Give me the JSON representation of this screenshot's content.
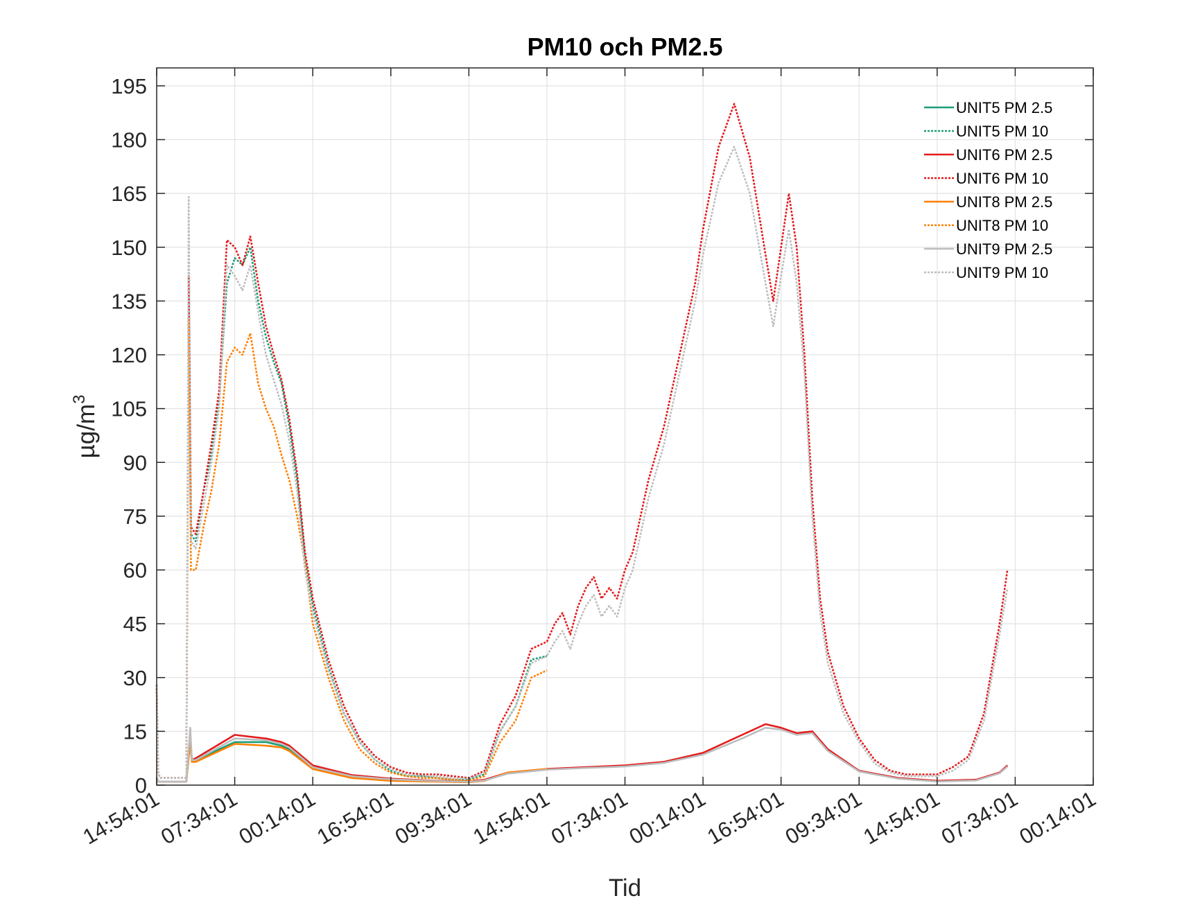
{
  "chart_data": {
    "type": "line",
    "title": "PM10 och PM2.5",
    "xlabel": "Tid",
    "ylabel": "µg/m",
    "ylabel_superscript": "3",
    "ylim": [
      0,
      200
    ],
    "yticks": [
      0,
      15,
      30,
      45,
      60,
      75,
      90,
      105,
      120,
      135,
      150,
      165,
      180,
      195
    ],
    "xlim": [
      0,
      12
    ],
    "xticks": [
      0,
      1,
      2,
      3,
      4,
      5,
      6,
      7,
      8,
      9,
      10,
      11,
      12
    ],
    "xtick_labels": [
      "14:54:01",
      "07:34:01",
      "00:14:01",
      "16:54:01",
      "09:34:01",
      "14:54:01",
      "07:34:01",
      "00:14:01",
      "16:54:01",
      "09:34:01",
      "14:54:01",
      "07:34:01",
      "00:14:01"
    ],
    "grid": true,
    "legend_position": "top-right",
    "series": [
      {
        "name": "UNIT5 PM 2.5",
        "color": "#1b9e77",
        "style": "solid",
        "x": [
          0,
          0.02,
          0.05,
          0.38,
          0.43,
          0.45,
          0.5,
          1.0,
          1.4,
          1.6,
          1.7,
          2.0,
          2.5,
          3.0,
          3.5,
          4.0,
          4.2
        ],
        "y": [
          2.0,
          1.0,
          1.0,
          1.0,
          13,
          7,
          7,
          12,
          12,
          11,
          10,
          5,
          2.5,
          1.5,
          1.2,
          1.0,
          1.2
        ]
      },
      {
        "name": "UNIT5 PM 10",
        "color": "#1b9e77",
        "style": "dotted",
        "x": [
          0,
          0.02,
          0.05,
          0.38,
          0.41,
          0.44,
          0.5,
          0.6,
          0.7,
          0.8,
          0.9,
          1.0,
          1.1,
          1.2,
          1.3,
          1.4,
          1.5,
          1.6,
          1.7,
          1.8,
          1.9,
          2.0,
          2.2,
          2.4,
          2.6,
          2.8,
          3.0,
          3.2,
          3.4,
          3.6,
          3.8,
          4.0,
          4.2,
          4.4,
          4.6,
          4.8,
          5.0
        ],
        "y": [
          28,
          3,
          2,
          2,
          140,
          70,
          68,
          82,
          92,
          108,
          140,
          147,
          145,
          150,
          135,
          125,
          118,
          112,
          100,
          85,
          63,
          50,
          33,
          20,
          12,
          7,
          4,
          2.5,
          2.5,
          2,
          1.5,
          1.5,
          3,
          15,
          22,
          35,
          36
        ]
      },
      {
        "name": "UNIT6 PM 2.5",
        "color": "#e41a1c",
        "style": "solid",
        "x": [
          0,
          0.02,
          0.05,
          0.38,
          0.43,
          0.45,
          0.5,
          1.0,
          1.4,
          1.6,
          1.7,
          2.0,
          2.5,
          3.0,
          3.5,
          4.0,
          4.2,
          4.5,
          5.0,
          5.5,
          6.0,
          6.5,
          7.0,
          7.5,
          7.8,
          8.0,
          8.2,
          8.4,
          8.6,
          9.0,
          9.5,
          10.0,
          10.5,
          10.8,
          10.9
        ],
        "y": [
          2.0,
          1.0,
          1.0,
          1.0,
          14,
          7,
          7.5,
          14,
          13,
          12,
          11,
          5.5,
          2.8,
          1.8,
          1.3,
          1.0,
          1.5,
          3.5,
          4.5,
          5.0,
          5.5,
          6.5,
          9,
          14,
          17,
          16,
          14.5,
          15,
          10,
          4,
          2,
          1.2,
          1.5,
          3.5,
          5.5
        ]
      },
      {
        "name": "UNIT6 PM 10",
        "color": "#e41a1c",
        "style": "dotted",
        "x": [
          0,
          0.02,
          0.05,
          0.38,
          0.41,
          0.44,
          0.5,
          0.6,
          0.7,
          0.8,
          0.9,
          1.0,
          1.1,
          1.2,
          1.3,
          1.4,
          1.5,
          1.6,
          1.7,
          1.8,
          1.9,
          2.0,
          2.2,
          2.4,
          2.6,
          2.8,
          3.0,
          3.2,
          3.4,
          3.6,
          3.8,
          4.0,
          4.2,
          4.4,
          4.6,
          4.8,
          5.0,
          5.1,
          5.2,
          5.3,
          5.4,
          5.5,
          5.6,
          5.7,
          5.8,
          5.9,
          6.0,
          6.1,
          6.2,
          6.3,
          6.5,
          6.7,
          6.9,
          7.0,
          7.2,
          7.4,
          7.6,
          7.8,
          7.9,
          8.0,
          8.1,
          8.2,
          8.3,
          8.4,
          8.5,
          8.6,
          8.8,
          9.0,
          9.2,
          9.4,
          9.6,
          9.8,
          10.0,
          10.2,
          10.4,
          10.6,
          10.8,
          10.9
        ],
        "y": [
          28,
          3,
          2,
          2,
          142,
          72,
          70,
          82,
          95,
          110,
          152,
          150,
          145,
          153,
          140,
          128,
          120,
          113,
          102,
          87,
          65,
          52,
          35,
          22,
          13,
          8,
          5,
          3.5,
          3,
          3,
          2.5,
          2,
          4,
          17,
          25,
          38,
          40,
          45,
          48,
          42,
          50,
          55,
          58,
          52,
          55,
          52,
          60,
          65,
          75,
          85,
          100,
          120,
          140,
          155,
          178,
          190,
          175,
          148,
          135,
          150,
          165,
          150,
          120,
          80,
          52,
          37,
          22,
          13,
          7,
          4,
          3,
          3,
          3,
          5,
          8,
          20,
          45,
          60
        ]
      },
      {
        "name": "UNIT8 PM 2.5",
        "color": "#ff7f00",
        "style": "solid",
        "x": [
          0,
          0.02,
          0.05,
          0.38,
          0.43,
          0.45,
          0.5,
          1.0,
          1.4,
          1.6,
          1.7,
          2.0,
          2.5,
          3.0,
          3.5,
          4.0,
          4.2,
          4.5,
          5.0
        ],
        "y": [
          2.0,
          1.0,
          1.0,
          1.0,
          12,
          6.5,
          6.5,
          11.5,
          11,
          10.5,
          9.5,
          4.5,
          2.0,
          1.2,
          1.0,
          0.8,
          1.2,
          3.5,
          4.5
        ]
      },
      {
        "name": "UNIT8 PM 10",
        "color": "#ff7f00",
        "style": "dotted",
        "x": [
          0,
          0.02,
          0.05,
          0.38,
          0.41,
          0.44,
          0.5,
          0.6,
          0.7,
          0.8,
          0.9,
          1.0,
          1.1,
          1.2,
          1.3,
          1.4,
          1.5,
          1.6,
          1.7,
          1.8,
          1.9,
          2.0,
          2.2,
          2.4,
          2.6,
          2.8,
          3.0,
          3.2,
          3.4,
          3.6,
          3.8,
          4.0,
          4.2,
          4.4,
          4.6,
          4.8,
          5.0
        ],
        "y": [
          28,
          3,
          2,
          2,
          130,
          60,
          60,
          72,
          82,
          95,
          118,
          122,
          120,
          126,
          112,
          105,
          100,
          92,
          85,
          75,
          62,
          45,
          30,
          18,
          10,
          6,
          3.5,
          2.5,
          2,
          2,
          1.5,
          1.2,
          2.5,
          12,
          18,
          30,
          32
        ]
      },
      {
        "name": "UNIT9 PM 2.5",
        "color": "#bdbdbd",
        "style": "solid",
        "x": [
          0,
          0.02,
          0.05,
          0.38,
          0.43,
          0.45,
          0.5,
          1.0,
          1.4,
          1.6,
          1.7,
          2.0,
          2.5,
          3.0,
          3.5,
          4.0,
          4.2,
          4.5,
          5.0,
          5.5,
          6.0,
          6.5,
          7.0,
          7.5,
          7.8,
          8.0,
          8.2,
          8.4,
          8.6,
          9.0,
          9.5,
          10.0,
          10.5,
          10.8,
          10.9
        ],
        "y": [
          2.0,
          1.0,
          1.0,
          1.0,
          16,
          7,
          7,
          13,
          12.5,
          11.5,
          10.5,
          5,
          2.5,
          1.6,
          1.2,
          0.9,
          1.3,
          3.2,
          4.3,
          4.8,
          5.2,
          6.2,
          8.5,
          13,
          16,
          15.5,
          14,
          14.5,
          9.5,
          3.8,
          1.8,
          1.0,
          1.3,
          3.3,
          5.2
        ]
      },
      {
        "name": "UNIT9 PM 10",
        "color": "#bdbdbd",
        "style": "dotted",
        "x": [
          0,
          0.02,
          0.05,
          0.38,
          0.41,
          0.44,
          0.5,
          0.6,
          0.7,
          0.8,
          0.9,
          1.0,
          1.1,
          1.2,
          1.3,
          1.4,
          1.5,
          1.6,
          1.7,
          1.8,
          1.9,
          2.0,
          2.2,
          2.4,
          2.6,
          2.8,
          3.0,
          3.2,
          3.4,
          3.6,
          3.8,
          4.0,
          4.2,
          4.4,
          4.6,
          4.8,
          5.0,
          5.1,
          5.2,
          5.3,
          5.4,
          5.5,
          5.6,
          5.7,
          5.8,
          5.9,
          6.0,
          6.1,
          6.2,
          6.3,
          6.5,
          6.7,
          6.9,
          7.0,
          7.2,
          7.4,
          7.6,
          7.8,
          7.9,
          8.0,
          8.1,
          8.2,
          8.3,
          8.4,
          8.5,
          8.6,
          8.8,
          9.0,
          9.2,
          9.4,
          9.6,
          9.8,
          10.0,
          10.2,
          10.4,
          10.6,
          10.8,
          10.9
        ],
        "y": [
          28,
          3,
          2,
          2,
          164,
          68,
          66,
          78,
          90,
          105,
          145,
          142,
          138,
          145,
          132,
          120,
          113,
          106,
          96,
          82,
          60,
          48,
          32,
          20,
          12,
          7,
          4.5,
          3,
          2.5,
          2.5,
          2,
          1.8,
          3.5,
          15,
          22,
          34,
          36,
          40,
          43,
          38,
          45,
          50,
          53,
          47,
          50,
          47,
          55,
          60,
          70,
          80,
          95,
          115,
          135,
          148,
          168,
          178,
          165,
          140,
          128,
          142,
          155,
          140,
          115,
          75,
          48,
          34,
          20,
          12,
          6,
          3.5,
          2.5,
          2.5,
          2.5,
          4,
          7,
          18,
          42,
          55
        ]
      }
    ]
  }
}
